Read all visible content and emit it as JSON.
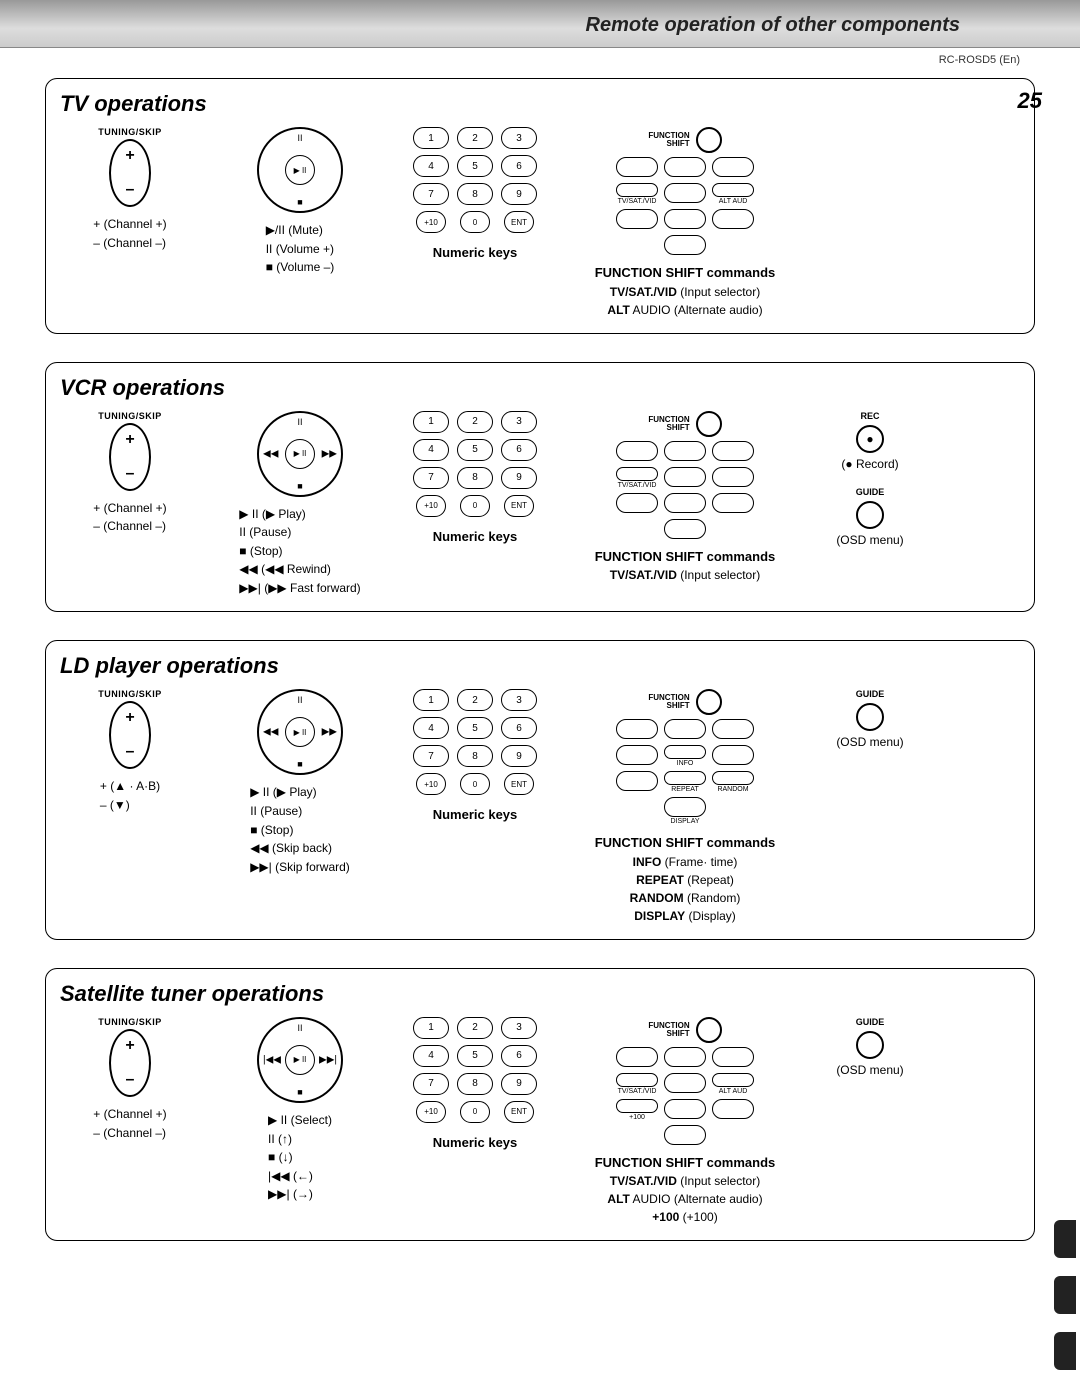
{
  "header": {
    "title": "Remote operation of other components",
    "model": "RC-ROSD5 (En)",
    "page_number": "25"
  },
  "keypad": {
    "keys": [
      "1",
      "2",
      "3",
      "4",
      "5",
      "6",
      "7",
      "8",
      "9",
      "+10",
      "0",
      "ENT"
    ],
    "caption": "Numeric keys"
  },
  "function_shift_label": "FUNCTION\nSHIFT",
  "sections": [
    {
      "title": "TV operations",
      "tuning_label": "TUNING/SKIP",
      "rocker_plus": "+",
      "rocker_minus": "–",
      "tuning_legend": "+ (Channel +)\n– (Channel –)",
      "dpad": {
        "n": "II",
        "center": "▶ II",
        "s": "■",
        "w": "",
        "e": ""
      },
      "dpad_legend": "▶/II  (Mute)\n  II  (Volume +)\n  ■  (Volume –)",
      "func_buttons": [
        [
          "",
          "",
          ""
        ],
        [
          "TV/SAT./VID",
          "",
          "ALT AUD"
        ],
        [
          "",
          "",
          ""
        ]
      ],
      "func_bottom": "",
      "func_desc": {
        "hd": "FUNCTION SHIFT commands",
        "lines": [
          "TV/SAT./VID (Input selector)",
          "ALT AUDIO (Alternate audio)"
        ]
      },
      "side": []
    },
    {
      "title": "VCR operations",
      "tuning_label": "TUNING/SKIP",
      "rocker_plus": "+",
      "rocker_minus": "–",
      "tuning_legend": "+ (Channel +)\n– (Channel –)",
      "dpad": {
        "n": "II",
        "center": "▶ II",
        "s": "■",
        "w": "◀◀",
        "e": "▶▶"
      },
      "dpad_legend": "▶ II  (▶ Play)\n  II  (Pause)\n  ■  (Stop)\n ◀◀  (◀◀ Rewind)\n ▶▶| (▶▶ Fast forward)",
      "func_buttons": [
        [
          "",
          "",
          ""
        ],
        [
          "TV/SAT./VID",
          "",
          ""
        ],
        [
          "",
          "",
          ""
        ]
      ],
      "func_bottom": "",
      "func_desc": {
        "hd": "FUNCTION SHIFT commands",
        "lines": [
          "TV/SAT./VID (Input selector)"
        ]
      },
      "side": [
        {
          "label": "REC",
          "dot": "●",
          "desc": "(● Record)"
        },
        {
          "label": "GUIDE",
          "dot": "",
          "desc": "(OSD menu)"
        }
      ]
    },
    {
      "title": "LD player operations",
      "tuning_label": "TUNING/SKIP",
      "rocker_plus": "+",
      "rocker_minus": "–",
      "tuning_legend": "+ (▲ · A·B)\n– (▼)",
      "dpad": {
        "n": "II",
        "center": "▶ II",
        "s": "■",
        "w": "◀◀",
        "e": "▶▶"
      },
      "dpad_legend": "▶ II  (▶ Play)\n  II  (Pause)\n  ■  (Stop)\n ◀◀  (Skip back)\n ▶▶| (Skip forward)",
      "func_buttons": [
        [
          "",
          "",
          ""
        ],
        [
          "",
          "INFO",
          ""
        ],
        [
          "",
          "REPEAT",
          "RANDOM"
        ]
      ],
      "func_bottom": "DISPLAY",
      "func_desc": {
        "hd": "FUNCTION SHIFT commands",
        "lines": [
          "INFO (Frame· time)",
          "REPEAT (Repeat)",
          "RANDOM (Random)",
          "DISPLAY (Display)"
        ]
      },
      "side": [
        {
          "label": "GUIDE",
          "dot": "",
          "desc": "(OSD menu)"
        }
      ]
    },
    {
      "title": "Satellite tuner operations",
      "tuning_label": "TUNING/SKIP",
      "rocker_plus": "+",
      "rocker_minus": "–",
      "tuning_legend": "+ (Channel +)\n– (Channel –)",
      "dpad": {
        "n": "II",
        "center": "▶ II",
        "s": "■",
        "w": "|◀◀",
        "e": "▶▶|"
      },
      "dpad_legend": "▶ II  (Select)\n  II  (↑)\n  ■  (↓)\n|◀◀  (←)\n▶▶|  (→)",
      "func_buttons": [
        [
          "",
          "",
          ""
        ],
        [
          "TV/SAT./VID",
          "",
          "ALT AUD"
        ],
        [
          "+100",
          "",
          ""
        ]
      ],
      "func_bottom": "",
      "func_desc": {
        "hd": "FUNCTION SHIFT commands",
        "lines": [
          "TV/SAT./VID (Input selector)",
          "ALT AUDIO (Alternate audio)",
          "+100 (+100)"
        ]
      },
      "side": [
        {
          "label": "GUIDE",
          "dot": "",
          "desc": "(OSD menu)"
        }
      ]
    }
  ]
}
